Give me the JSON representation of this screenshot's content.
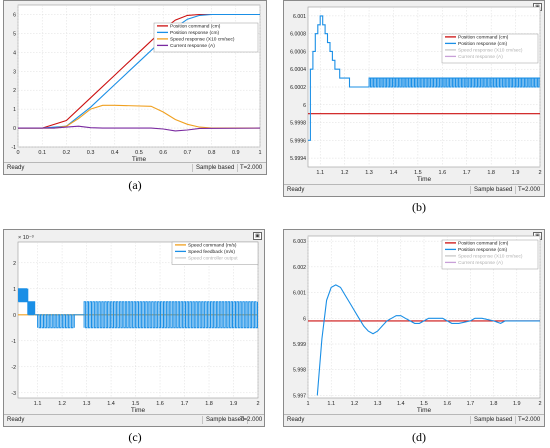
{
  "panels": [
    {
      "caption": "(a)",
      "status": {
        "left": "Ready",
        "mode": "Sample based",
        "time": "T=2.000"
      },
      "chart_data": {
        "type": "line",
        "xlabel": "Time",
        "ylabel": "",
        "xlim": [
          0,
          1
        ],
        "ylim": [
          -1,
          6.5
        ],
        "xticks": [
          "0",
          "0.1",
          "0.2",
          "0.3",
          "0.4",
          "0.5",
          "0.6",
          "0.7",
          "0.8",
          "0.9",
          "1"
        ],
        "xtick_values": [
          0,
          0.1,
          0.2,
          0.3,
          0.4,
          0.5,
          0.6,
          0.7,
          0.8,
          0.9,
          1
        ],
        "yticks": [
          "-1",
          "0",
          "1",
          "2",
          "3",
          "4",
          "5",
          "6"
        ],
        "ytick_values": [
          -1,
          0,
          1,
          2,
          3,
          4,
          5,
          6
        ],
        "grid": true,
        "legend_position": "top-right",
        "series": [
          {
            "name": "Position command (cm)",
            "color": "#cc1111",
            "x": [
              0,
              0.1,
              0.2,
              0.3,
              0.4,
              0.5,
              0.6,
              0.65,
              0.7,
              0.75,
              0.8,
              1
            ],
            "y": [
              0,
              0,
              0.4,
              1.6,
              2.8,
              4.0,
              5.2,
              5.7,
              5.95,
              6.0,
              6.0,
              6.0
            ]
          },
          {
            "name": "Position response (cm)",
            "color": "#1a8fe6",
            "x": [
              0,
              0.1,
              0.2,
              0.3,
              0.4,
              0.5,
              0.6,
              0.65,
              0.7,
              0.75,
              0.8,
              1
            ],
            "y": [
              0,
              0,
              0.1,
              1.1,
              2.3,
              3.5,
              4.7,
              5.3,
              5.75,
              5.95,
              6.0,
              6.0
            ]
          },
          {
            "name": "Speed response (X10 cm/sec)",
            "color": "#f0a020",
            "x": [
              0,
              0.15,
              0.2,
              0.25,
              0.3,
              0.35,
              0.4,
              0.55,
              0.6,
              0.65,
              0.7,
              0.75,
              0.8,
              1
            ],
            "y": [
              0,
              0,
              0.1,
              0.5,
              1.0,
              1.2,
              1.2,
              1.15,
              0.85,
              0.45,
              0.2,
              0.05,
              0,
              0
            ]
          },
          {
            "name": "Current response (A)",
            "color": "#7a2aa0",
            "x": [
              0,
              0.15,
              0.2,
              0.25,
              0.3,
              0.35,
              0.55,
              0.6,
              0.65,
              0.7,
              0.75,
              1
            ],
            "y": [
              0,
              0,
              0.05,
              0.1,
              0.02,
              0,
              0,
              -0.05,
              -0.15,
              -0.1,
              -0.02,
              0
            ]
          }
        ]
      }
    },
    {
      "caption": "(b)",
      "status": {
        "left": "Ready",
        "mode": "Sample based",
        "time": "T=2.000"
      },
      "chart_data": {
        "type": "line",
        "xlabel": "Time",
        "ylabel": "",
        "xlim": [
          1.05,
          2
        ],
        "ylim": [
          5.9993,
          6.0011
        ],
        "xticks": [
          "1.1",
          "1.2",
          "1.3",
          "1.4",
          "1.5",
          "1.6",
          "1.7",
          "1.8",
          "1.9",
          "2"
        ],
        "xtick_values": [
          1.1,
          1.2,
          1.3,
          1.4,
          1.5,
          1.6,
          1.7,
          1.8,
          1.9,
          2
        ],
        "yticks": [
          "6.001",
          "6.0008",
          "6.0006",
          "6.0004",
          "6.0002",
          "6",
          "5.9998",
          "5.9996",
          "5.9994"
        ],
        "ytick_values": [
          6.001,
          6.0008,
          6.0006,
          6.0004,
          6.0002,
          6.0,
          5.9998,
          5.9996,
          5.9994
        ],
        "grid": true,
        "legend_position": "top-right",
        "series": [
          {
            "name": "Position command (cm)",
            "color": "#cc1111",
            "x": [
              1.05,
              2
            ],
            "y": [
              5.9999,
              5.9999
            ]
          },
          {
            "name": "Position response (cm)",
            "color": "#1a8fe6",
            "step": true,
            "x": [
              1.05,
              1.06,
              1.07,
              1.08,
              1.09,
              1.1,
              1.11,
              1.12,
              1.13,
              1.14,
              1.15,
              1.16,
              1.17,
              1.18,
              1.2,
              1.22,
              1.25,
              1.29,
              1.3,
              2
            ],
            "y": [
              5.9996,
              6.0004,
              6.0006,
              6.0008,
              6.0009,
              6.001,
              6.0009,
              6.0008,
              6.0007,
              6.0006,
              6.0005,
              6.0004,
              6.0004,
              6.0003,
              6.0003,
              6.0002,
              6.0002,
              6.0002,
              6.0003,
              6.0003
            ],
            "oscillate": {
              "from": 1.3,
              "to": 2,
              "low": 6.0002,
              "high": 6.0003,
              "period": 0.012
            }
          },
          {
            "name": "Speed response (X10 cm/sec)",
            "color": "#c8c8c8",
            "x": [],
            "y": []
          },
          {
            "name": "Current response (A)",
            "color": "#c8a0d8",
            "x": [],
            "y": []
          }
        ]
      }
    },
    {
      "caption": "(c)",
      "status": {
        "left": "Ready",
        "mode": "Sample based",
        "time": "T=2.000"
      },
      "chart_data": {
        "type": "line",
        "xlabel": "Time",
        "ylabel": "",
        "exponent_label": "× 10⁻³",
        "xlim": [
          1.02,
          2
        ],
        "ylim": [
          -3.2,
          2.8
        ],
        "xticks": [
          "1.1",
          "1.2",
          "1.3",
          "1.4",
          "1.5",
          "1.6",
          "1.7",
          "1.8",
          "1.9",
          "2"
        ],
        "xtick_values": [
          1.1,
          1.2,
          1.3,
          1.4,
          1.5,
          1.6,
          1.7,
          1.8,
          1.9,
          2
        ],
        "yticks": [
          "2",
          "1",
          "0",
          "-1",
          "-2",
          "-3"
        ],
        "ytick_values": [
          2,
          1,
          0,
          -1,
          -2,
          -3
        ],
        "grid": true,
        "legend_position": "top-right",
        "series": [
          {
            "name": "Speed command (m/s)",
            "color": "#f0a020",
            "x": [
              1.02,
              2
            ],
            "y": [
              0,
              0
            ]
          },
          {
            "name": "Speed feedback (m/s)",
            "color": "#1a8fe6",
            "x": [],
            "y": [],
            "segments": [
              {
                "from": 1.02,
                "to": 1.06,
                "low": 0.5,
                "high": 1.0,
                "period": 0.008
              },
              {
                "from": 1.06,
                "to": 1.09,
                "low": 0,
                "high": 0.5,
                "period": 0.008
              },
              {
                "from": 1.09,
                "to": 1.1,
                "low": 0,
                "high": 0,
                "period": 0.01
              },
              {
                "from": 1.1,
                "to": 1.25,
                "low": -0.5,
                "high": 0,
                "period": 0.012
              },
              {
                "from": 1.25,
                "to": 1.29,
                "low": 0,
                "high": 0,
                "period": 0.01
              },
              {
                "from": 1.29,
                "to": 2,
                "low": -0.5,
                "high": 0.5,
                "period": 0.012
              }
            ]
          },
          {
            "name": "Speed controller output",
            "color": "#cfcfcf",
            "x": [],
            "y": []
          }
        ]
      }
    },
    {
      "caption": "(d)",
      "status": {
        "left": "Ready",
        "mode": "Sample based",
        "time": "T=2.000"
      },
      "chart_data": {
        "type": "line",
        "xlabel": "Time",
        "ylabel": "",
        "xlim": [
          1.0,
          2
        ],
        "ylim": [
          5.9969,
          6.0032
        ],
        "xticks": [
          "1",
          "1.1",
          "1.2",
          "1.3",
          "1.4",
          "1.5",
          "1.6",
          "1.7",
          "1.8",
          "1.9",
          "2"
        ],
        "xtick_values": [
          1.0,
          1.1,
          1.2,
          1.3,
          1.4,
          1.5,
          1.6,
          1.7,
          1.8,
          1.9,
          2
        ],
        "yticks": [
          "6.003",
          "6.002",
          "6.001",
          "6",
          "5.999",
          "5.998",
          "5.997"
        ],
        "ytick_values": [
          6.003,
          6.002,
          6.001,
          6.0,
          5.999,
          5.998,
          5.997
        ],
        "grid": true,
        "legend_position": "top-right",
        "series": [
          {
            "name": "Position command (cm)",
            "color": "#cc1111",
            "x": [
              1.0,
              2
            ],
            "y": [
              5.9999,
              5.9999
            ]
          },
          {
            "name": "Position response (cm)",
            "color": "#1a8fe6",
            "x": [
              1.04,
              1.06,
              1.08,
              1.1,
              1.12,
              1.14,
              1.16,
              1.18,
              1.2,
              1.22,
              1.24,
              1.26,
              1.28,
              1.3,
              1.32,
              1.34,
              1.36,
              1.38,
              1.4,
              1.42,
              1.44,
              1.46,
              1.48,
              1.5,
              1.52,
              1.55,
              1.58,
              1.6,
              1.62,
              1.65,
              1.7,
              1.72,
              1.75,
              1.8,
              1.83,
              1.85,
              1.9,
              2
            ],
            "y": [
              5.997,
              5.9992,
              6.0007,
              6.0012,
              6.0013,
              6.0012,
              6.0009,
              6.0006,
              6.0003,
              6.0,
              5.9997,
              5.9995,
              5.9994,
              5.9995,
              5.9997,
              5.9999,
              6.0,
              6.0001,
              6.0001,
              6.0,
              5.9999,
              5.9998,
              5.9998,
              5.9999,
              6.0,
              6.0,
              6.0,
              5.9999,
              5.9998,
              5.9998,
              5.9999,
              6.0,
              6.0,
              5.9999,
              5.9998,
              5.9999,
              5.9999,
              5.9999
            ]
          },
          {
            "name": "Speed response (X10 cm/sec)",
            "color": "#c8c8c8",
            "x": [],
            "y": []
          },
          {
            "name": "Current response (A)",
            "color": "#c8a0d8",
            "x": [],
            "y": []
          }
        ]
      }
    }
  ]
}
